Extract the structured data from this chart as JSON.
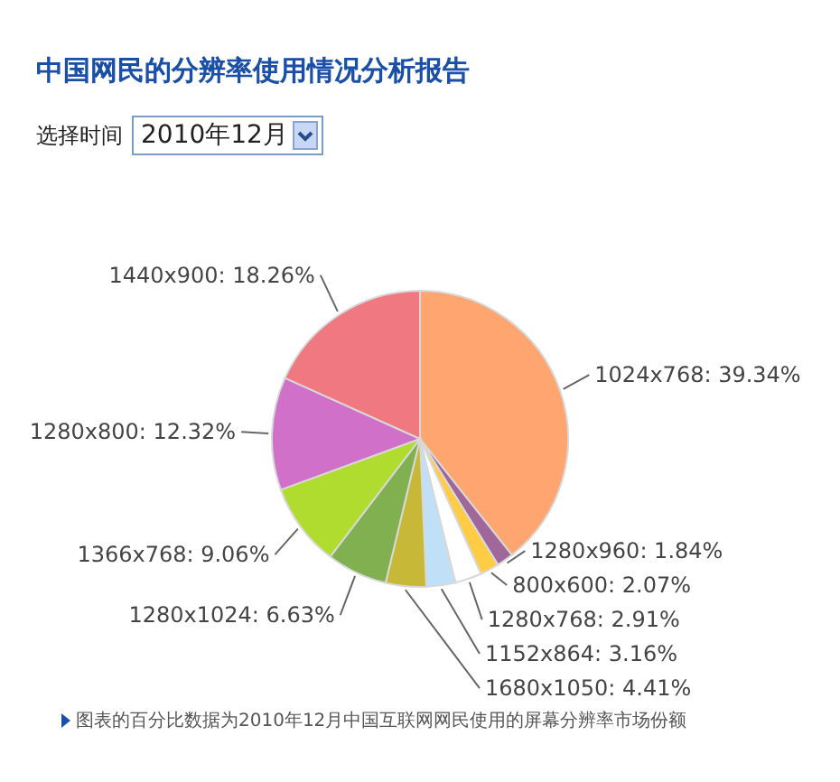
{
  "chart_data": {
    "type": "pie",
    "title": "中国网民的分辨率使用情况分析报告",
    "categories": [
      "1024x768",
      "1280x960",
      "800x600",
      "1280x768",
      "1152x864",
      "1680x1050",
      "1280x1024",
      "1366x768",
      "1280x800",
      "1440x900"
    ],
    "values": [
      39.34,
      1.84,
      2.07,
      2.91,
      3.16,
      4.41,
      6.63,
      9.06,
      12.32,
      18.26
    ],
    "colors": [
      "#ffa570",
      "#a0689a",
      "#ffcc44",
      "#ffffff",
      "#c0e0f8",
      "#c8b838",
      "#80b050",
      "#b0dc30",
      "#d070c8",
      "#f07880"
    ],
    "value_labels": [
      "39.34%",
      "1.84%",
      "2.07%",
      "2.91%",
      "3.16%",
      "4.41%",
      "6.63%",
      "9.06%",
      "12.32%",
      "18.26%"
    ],
    "annotations": [
      "选择时间",
      "2010年12月",
      "图表的百分比数据为2010年12月中国互联网网民使用的屏幕分辨率市场份额"
    ]
  }
}
